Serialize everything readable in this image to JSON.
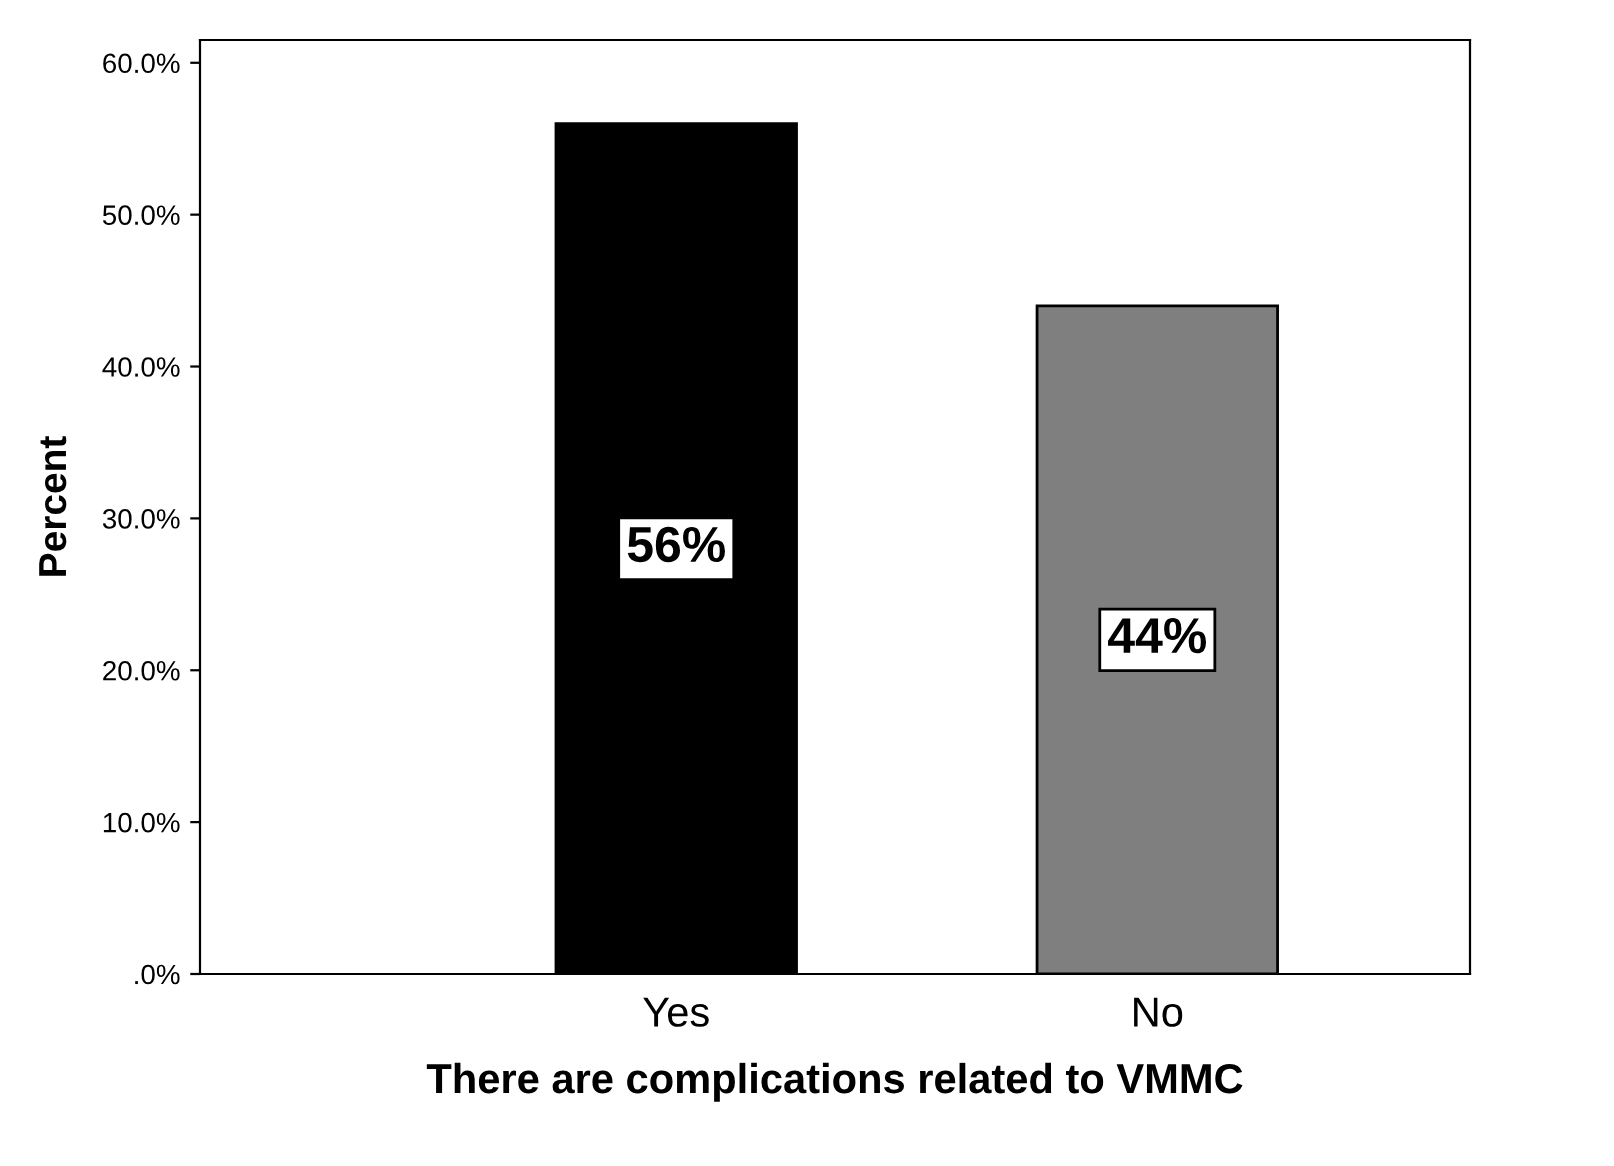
{
  "chart_data": {
    "type": "bar",
    "xlabel": "There are complications related to VMMC",
    "ylabel": "Percent",
    "categories": [
      "Yes",
      "No"
    ],
    "values": [
      56,
      44
    ],
    "colors": [
      "#000000",
      "#7f7f7f"
    ],
    "value_labels": [
      "56%",
      "44%"
    ],
    "ylim": [
      0,
      61.5
    ],
    "yticks": [
      {
        "value": 0,
        "label": ".0%"
      },
      {
        "value": 10,
        "label": "10.0%"
      },
      {
        "value": 20,
        "label": "20.0%"
      },
      {
        "value": 30,
        "label": "30.0%"
      },
      {
        "value": 40,
        "label": "40.0%"
      },
      {
        "value": 50,
        "label": "50.0%"
      },
      {
        "value": 60,
        "label": "60.0%"
      }
    ],
    "grid": false
  }
}
